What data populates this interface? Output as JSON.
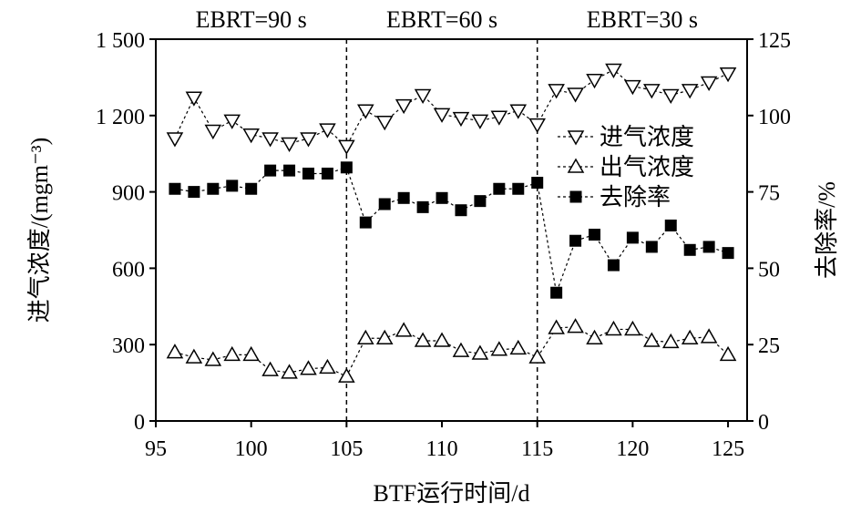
{
  "chart_data": {
    "type": "line",
    "xlabel": "BTF运行时间/d",
    "ylabel_left": "进气浓度/(mgm⁻³)",
    "ylabel_right": "去除率/%",
    "xlim": [
      95,
      126
    ],
    "ylim_left": [
      0,
      1500
    ],
    "ylim_right": [
      0,
      125
    ],
    "x_ticks": [
      "95",
      "100",
      "105",
      "110",
      "115",
      "120",
      "125"
    ],
    "y_left_ticks": [
      "0",
      "300",
      "600",
      "900",
      "1 200",
      "1 500"
    ],
    "y_right_ticks": [
      "0",
      "25",
      "50",
      "75",
      "100",
      "125"
    ],
    "x_tick_values": [
      95,
      100,
      105,
      110,
      115,
      120,
      125
    ],
    "y_left_tick_values": [
      0,
      300,
      600,
      900,
      1200,
      1500
    ],
    "y_right_tick_values": [
      0,
      25,
      50,
      75,
      100,
      125
    ],
    "periods": [
      {
        "label": "EBRT=90 s",
        "from": 95,
        "to": 105
      },
      {
        "label": "EBRT=60 s",
        "from": 105,
        "to": 115
      },
      {
        "label": "EBRT=30 s",
        "from": 115,
        "to": 126
      }
    ],
    "dividers": [
      105,
      115
    ],
    "legend_position": "right-center",
    "x": [
      96,
      97,
      98,
      99,
      100,
      101,
      102,
      103,
      104,
      105,
      106,
      107,
      108,
      109,
      110,
      111,
      112,
      113,
      114,
      115,
      116,
      117,
      118,
      119,
      120,
      121,
      122,
      123,
      124,
      125
    ],
    "series": [
      {
        "name": "进气浓度",
        "axis": "left",
        "marker": "triangle-down",
        "values": [
          1110,
          1270,
          1140,
          1180,
          1125,
          1110,
          1090,
          1110,
          1145,
          1080,
          1220,
          1175,
          1240,
          1280,
          1205,
          1190,
          1180,
          1195,
          1220,
          1165,
          1300,
          1285,
          1340,
          1380,
          1315,
          1300,
          1280,
          1300,
          1330,
          1365
        ]
      },
      {
        "name": "出气浓度",
        "axis": "left",
        "marker": "triangle-up",
        "values": [
          270,
          250,
          240,
          260,
          260,
          200,
          190,
          205,
          210,
          175,
          325,
          325,
          355,
          315,
          315,
          275,
          265,
          280,
          285,
          250,
          365,
          370,
          325,
          360,
          360,
          315,
          310,
          325,
          330,
          260
        ]
      },
      {
        "name": "去除率",
        "axis": "right",
        "marker": "square",
        "values": [
          76,
          75,
          76,
          77,
          76,
          82,
          82,
          81,
          81,
          83,
          65,
          71,
          73,
          70,
          73,
          69,
          72,
          76,
          76,
          78,
          42,
          59,
          61,
          51,
          60,
          57,
          64,
          56,
          57,
          55
        ]
      }
    ]
  }
}
